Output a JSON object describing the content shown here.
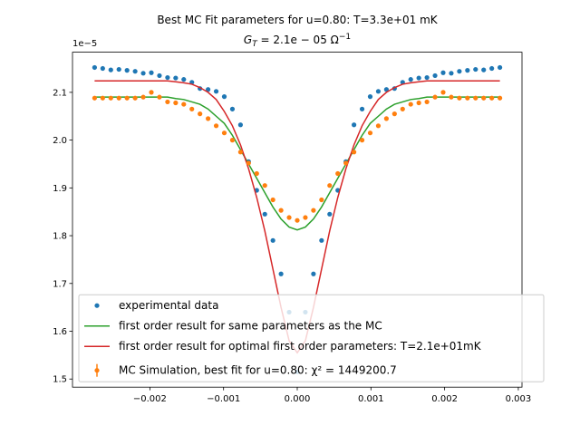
{
  "chart_data": {
    "type": "line",
    "title": "Best MC Fit parameters for u=0.80:  T=3.3e+01 mK",
    "subtitle": {
      "main": "G",
      "sub": "T",
      "rest": " = 2.1e − 05 Ω",
      "sup": "−1"
    },
    "y_offset_label": "1e−5",
    "x": [
      -0.00275,
      -0.00264,
      -0.00253,
      -0.00242,
      -0.00231,
      -0.0022,
      -0.00209,
      -0.00198,
      -0.00187,
      -0.00176,
      -0.00165,
      -0.00154,
      -0.00143,
      -0.00132,
      -0.00121,
      -0.0011,
      -0.00099,
      -0.00088,
      -0.00077,
      -0.00066,
      -0.00055,
      -0.00044,
      -0.00033,
      -0.00022,
      -0.00011,
      0,
      0.00011,
      0.00022,
      0.00033,
      0.00044,
      0.00055,
      0.00066,
      0.00077,
      0.00088,
      0.00099,
      0.0011,
      0.00121,
      0.00132,
      0.00143,
      0.00154,
      0.00165,
      0.00176,
      0.00187,
      0.00198,
      0.00209,
      0.0022,
      0.00231,
      0.00242,
      0.00253,
      0.00264,
      0.00275
    ],
    "series": [
      {
        "name": "experimental data",
        "color": "#1f77b4",
        "style": "markers",
        "values": [
          2.152,
          2.15,
          2.147,
          2.148,
          2.146,
          2.144,
          2.14,
          2.141,
          2.135,
          2.131,
          2.13,
          2.127,
          2.121,
          2.108,
          2.106,
          2.102,
          2.091,
          2.065,
          2.032,
          1.955,
          1.895,
          1.845,
          1.79,
          1.72,
          1.64,
          1.515,
          1.64,
          1.72,
          1.79,
          1.845,
          1.895,
          1.955,
          2.032,
          2.065,
          2.091,
          2.102,
          2.106,
          2.108,
          2.121,
          2.127,
          2.13,
          2.131,
          2.135,
          2.141,
          2.14,
          2.144,
          2.146,
          2.148,
          2.147,
          2.15,
          2.152
        ]
      },
      {
        "name": "first order result for same parameters as the MC",
        "color": "#2ca02c",
        "style": "line",
        "values": [
          2.09,
          2.09,
          2.09,
          2.09,
          2.09,
          2.09,
          2.09,
          2.09,
          2.09,
          2.09,
          2.087,
          2.085,
          2.08,
          2.075,
          2.065,
          2.05,
          2.035,
          2.01,
          1.98,
          1.95,
          1.92,
          1.89,
          1.86,
          1.835,
          1.818,
          1.812,
          1.818,
          1.835,
          1.86,
          1.89,
          1.92,
          1.95,
          1.98,
          2.01,
          2.035,
          2.05,
          2.065,
          2.075,
          2.08,
          2.085,
          2.087,
          2.09,
          2.09,
          2.09,
          2.09,
          2.09,
          2.09,
          2.09,
          2.09,
          2.09,
          2.09
        ]
      },
      {
        "name": "first order result for optimal first order parameters: T=2.1e+01mK",
        "color": "#d62728",
        "style": "line",
        "values": [
          2.124,
          2.124,
          2.124,
          2.124,
          2.124,
          2.124,
          2.124,
          2.124,
          2.124,
          2.124,
          2.122,
          2.12,
          2.117,
          2.11,
          2.1,
          2.085,
          2.06,
          2.03,
          1.99,
          1.94,
          1.88,
          1.81,
          1.73,
          1.65,
          1.58,
          1.555,
          1.58,
          1.65,
          1.73,
          1.81,
          1.88,
          1.94,
          1.99,
          2.03,
          2.06,
          2.085,
          2.1,
          2.11,
          2.117,
          2.12,
          2.122,
          2.124,
          2.124,
          2.124,
          2.124,
          2.124,
          2.124,
          2.124,
          2.124,
          2.124,
          2.124
        ]
      },
      {
        "name": "MC Simulation, best fit for u=0.80:  χ² = 1449200.7",
        "color": "#ff7f0e",
        "style": "errorbar",
        "values": [
          2.088,
          2.088,
          2.088,
          2.088,
          2.088,
          2.088,
          2.09,
          2.1,
          2.09,
          2.08,
          2.078,
          2.075,
          2.065,
          2.055,
          2.045,
          2.03,
          2.015,
          2.0,
          1.975,
          1.952,
          1.93,
          1.905,
          1.875,
          1.853,
          1.838,
          1.832,
          1.838,
          1.853,
          1.875,
          1.905,
          1.93,
          1.952,
          1.975,
          2.0,
          2.015,
          2.03,
          2.045,
          2.055,
          2.065,
          2.075,
          2.078,
          2.08,
          2.09,
          2.1,
          2.09,
          2.088,
          2.088,
          2.088,
          2.088,
          2.088,
          2.088
        ]
      }
    ],
    "xlim": [
      -0.00305,
      0.00305
    ],
    "ylim": [
      1.483,
      2.184
    ],
    "xticks": [
      {
        "value": -0.002,
        "label": "−0.002"
      },
      {
        "value": -0.001,
        "label": "−0.001"
      },
      {
        "value": 0,
        "label": "0.000"
      },
      0.001,
      0.002,
      0.003
    ],
    "yticks": [
      1.5,
      1.6,
      1.7,
      1.8,
      1.9,
      {
        "value": 2.0,
        "label": "2.0"
      },
      2.1
    ],
    "grid": false,
    "legend": "lower center"
  }
}
